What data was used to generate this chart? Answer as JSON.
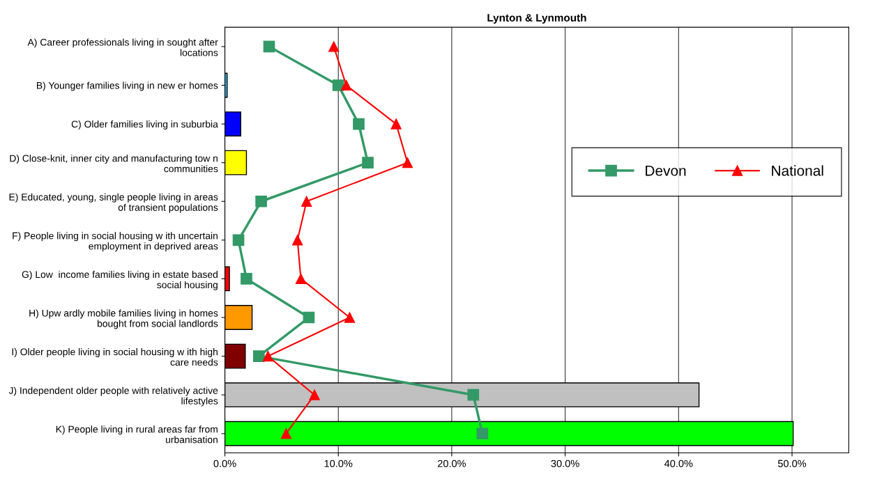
{
  "chart_data": {
    "type": "bar",
    "orientation": "horizontal",
    "title": "Lynton & Lynmouth",
    "categories": [
      "A) Career professionals living in sought after locations",
      "B) Younger families living in new er homes",
      "C) Older families living in suburbia",
      "D) Close-knit, inner city and manufacturing tow n communities",
      "E) Educated, young, single people living in areas of transient populations",
      "F) People living in social housing w ith uncertain employment in deprived areas",
      "G) Low  income families living in estate based social housing",
      "H) Upw ardly mobile families living in homes bought from social landlords",
      "I) Older people living in social housing w ith high care needs",
      "J) Independent older people with relatively active lifestyles",
      "K) People living in rural areas far from urbanisation"
    ],
    "series": [
      {
        "colors": [
          null,
          "#33ccff",
          "#0000ff",
          "#ffff00",
          null,
          null,
          "#ff0000",
          "#ff9900",
          "#800000",
          "#c0c0c0",
          "#00ff00"
        ],
        "values": [
          null,
          0.2,
          1.4,
          1.9,
          null,
          null,
          0.4,
          2.4,
          1.8,
          41.8,
          50.1
        ]
      },
      {
        "type": "line",
        "name": "Devon",
        "color": "#339966",
        "marker": "square",
        "values": [
          3.9,
          10.0,
          11.8,
          12.6,
          3.2,
          1.2,
          1.9,
          7.4,
          3.0,
          21.9,
          22.7
        ]
      },
      {
        "type": "line",
        "name": "National",
        "color": "#ff0000",
        "marker": "triangle",
        "values": [
          9.6,
          10.7,
          15.1,
          16.1,
          7.2,
          6.4,
          6.7,
          11.0,
          3.8,
          7.9,
          5.4
        ]
      }
    ],
    "xlim": [
      0,
      55
    ],
    "xticks": [
      {
        "value": 0,
        "label": "0.0%"
      },
      {
        "value": 10,
        "label": "10.0%"
      },
      {
        "value": 20,
        "label": "20.0%"
      },
      {
        "value": 30,
        "label": "30.0%"
      },
      {
        "value": 40,
        "label": "40.0%"
      },
      {
        "value": 50,
        "label": "50.0%"
      }
    ],
    "grid": "x",
    "legend": "right"
  }
}
